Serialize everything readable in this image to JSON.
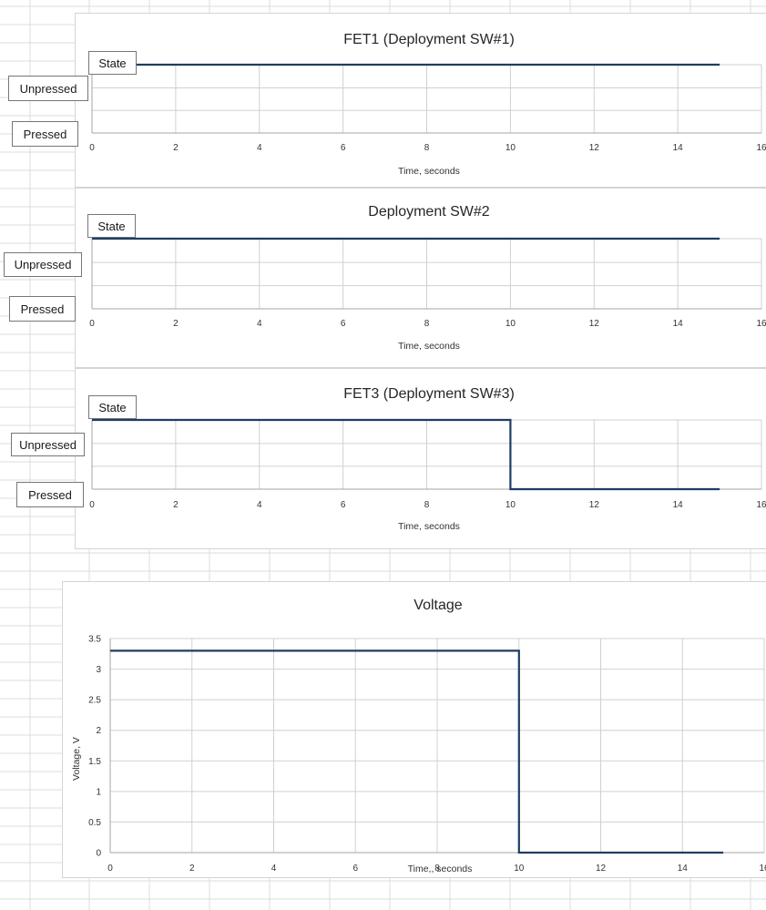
{
  "colors": {
    "line": "#1f3d63",
    "gridline": "#d0d0d0",
    "axis": "#a6a6a6",
    "sheet_grid": "#dcdcdc"
  },
  "chart_data": [
    {
      "type": "line",
      "title": "FET1 (Deployment SW#1)",
      "xlabel": "Time, seconds",
      "ylabel": "",
      "xlim": [
        0,
        16
      ],
      "x_ticks": [
        0,
        2,
        4,
        6,
        8,
        10,
        12,
        14,
        16
      ],
      "ylim": [
        0,
        2
      ],
      "y_category_labels": [
        {
          "label": "Unpressed",
          "value": 2
        },
        {
          "label": "Pressed",
          "value": 0
        }
      ],
      "y_axis_label_box": "State",
      "grid": true,
      "series": [
        {
          "x": [
            0,
            15
          ],
          "y": [
            2,
            2
          ]
        }
      ]
    },
    {
      "type": "line",
      "title": "Deployment SW#2",
      "xlabel": "Time, seconds",
      "ylabel": "",
      "xlim": [
        0,
        16
      ],
      "x_ticks": [
        0,
        2,
        4,
        6,
        8,
        10,
        12,
        14,
        16
      ],
      "ylim": [
        0,
        2
      ],
      "y_category_labels": [
        {
          "label": "Unpressed",
          "value": 2
        },
        {
          "label": "Pressed",
          "value": 0
        }
      ],
      "y_axis_label_box": "State",
      "grid": true,
      "series": [
        {
          "x": [
            0,
            15
          ],
          "y": [
            2,
            2
          ]
        }
      ]
    },
    {
      "type": "line",
      "title": "FET3 (Deployment SW#3)",
      "xlabel": "Time, seconds",
      "ylabel": "",
      "xlim": [
        0,
        16
      ],
      "x_ticks": [
        0,
        2,
        4,
        6,
        8,
        10,
        12,
        14,
        16
      ],
      "ylim": [
        0,
        2
      ],
      "y_category_labels": [
        {
          "label": "Unpressed",
          "value": 2
        },
        {
          "label": "Pressed",
          "value": 0
        }
      ],
      "y_axis_label_box": "State",
      "grid": true,
      "series": [
        {
          "x": [
            0,
            10,
            10,
            15
          ],
          "y": [
            2,
            2,
            0,
            0
          ]
        }
      ]
    },
    {
      "type": "line",
      "title": "Voltage",
      "xlabel": "Time,, seconds",
      "ylabel": "Voltage, V",
      "xlim": [
        0,
        16
      ],
      "x_ticks": [
        0,
        2,
        4,
        6,
        8,
        10,
        12,
        14,
        16
      ],
      "ylim": [
        0,
        3.5
      ],
      "y_ticks": [
        0,
        0.5,
        1,
        1.5,
        2,
        2.5,
        3,
        3.5
      ],
      "grid": true,
      "series": [
        {
          "x": [
            0,
            10,
            10,
            15
          ],
          "y": [
            3.3,
            3.3,
            0,
            0
          ]
        }
      ]
    }
  ]
}
